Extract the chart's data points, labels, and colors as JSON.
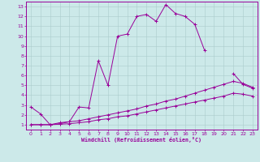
{
  "xlabel": "Windchill (Refroidissement éolien,°C)",
  "background_color": "#cce9e9",
  "line_color": "#990099",
  "grid_color": "#aacccc",
  "xlim": [
    -0.5,
    23.5
  ],
  "ylim": [
    0.5,
    13.5
  ],
  "xticks": [
    0,
    1,
    2,
    3,
    4,
    5,
    6,
    7,
    8,
    9,
    10,
    11,
    12,
    13,
    14,
    15,
    16,
    17,
    18,
    19,
    20,
    21,
    22,
    23
  ],
  "yticks": [
    1,
    2,
    3,
    4,
    5,
    6,
    7,
    8,
    9,
    10,
    11,
    12,
    13
  ],
  "curve1_x": [
    0,
    1,
    2,
    3,
    4,
    5,
    6,
    7,
    8,
    9,
    10,
    11,
    12,
    13,
    14,
    15,
    16,
    17,
    18,
    19,
    20,
    21,
    22,
    23
  ],
  "curve1_y": [
    2.8,
    2.1,
    1.0,
    1.2,
    1.3,
    2.8,
    2.7,
    7.5,
    5.0,
    10.0,
    10.2,
    12.0,
    12.2,
    11.5,
    13.2,
    12.3,
    12.0,
    11.2,
    8.6,
    null,
    null,
    6.2,
    5.1,
    4.7
  ],
  "curve2_x": [
    0,
    1,
    2,
    3,
    4,
    5,
    6,
    7,
    8,
    9,
    10,
    11,
    12,
    13,
    14,
    15,
    16,
    17,
    18,
    19,
    20,
    21,
    22,
    23
  ],
  "curve2_y": [
    1.0,
    1.0,
    1.0,
    1.1,
    1.3,
    1.4,
    1.6,
    1.8,
    2.0,
    2.2,
    2.4,
    2.6,
    2.9,
    3.1,
    3.4,
    3.6,
    3.9,
    4.2,
    4.5,
    4.8,
    5.1,
    5.4,
    5.2,
    4.8
  ],
  "curve3_x": [
    0,
    1,
    2,
    3,
    4,
    5,
    6,
    7,
    8,
    9,
    10,
    11,
    12,
    13,
    14,
    15,
    16,
    17,
    18,
    19,
    20,
    21,
    22,
    23
  ],
  "curve3_y": [
    1.0,
    1.0,
    1.0,
    1.05,
    1.1,
    1.2,
    1.3,
    1.5,
    1.6,
    1.8,
    1.9,
    2.1,
    2.3,
    2.5,
    2.7,
    2.9,
    3.1,
    3.3,
    3.5,
    3.7,
    3.9,
    4.2,
    4.1,
    3.9
  ]
}
